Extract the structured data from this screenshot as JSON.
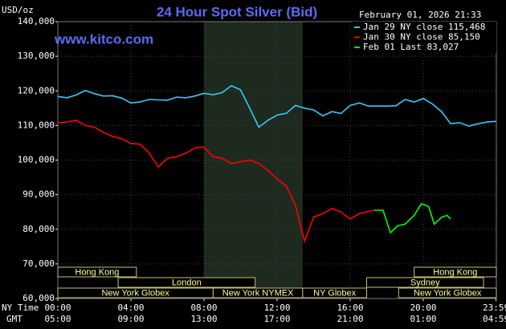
{
  "chart_data": {
    "type": "line",
    "title": "24 Hour Spot Silver (Bid)",
    "watermark": "www.kitco.com",
    "y_label": "USD/oz",
    "timestamp": "February 01, 2026 21:33",
    "x_row_labels": [
      "NY Time",
      "GMT"
    ],
    "xlim": [
      0,
      24
    ],
    "ylim": [
      60000,
      140000
    ],
    "yticks": [
      {
        "value": 60000,
        "label": "60,000"
      },
      {
        "value": 70000,
        "label": "70,000"
      },
      {
        "value": 80000,
        "label": "80,000"
      },
      {
        "value": 90000,
        "label": "90,000"
      },
      {
        "value": 100000,
        "label": "100,000"
      },
      {
        "value": 110000,
        "label": "110,000"
      },
      {
        "value": 120000,
        "label": "120,000"
      },
      {
        "value": 130000,
        "label": "130,000"
      },
      {
        "value": 140000,
        "label": "140,000"
      }
    ],
    "xticks": [
      {
        "value": 0,
        "label": "00:00"
      },
      {
        "value": 4,
        "label": "04:00"
      },
      {
        "value": 8,
        "label": "08:00"
      },
      {
        "value": 12,
        "label": "12:00"
      },
      {
        "value": 16,
        "label": "16:00"
      },
      {
        "value": 20,
        "label": "20:00"
      },
      {
        "value": 23.98,
        "label": "23:59"
      }
    ],
    "x2ticks": [
      {
        "value": 0,
        "label": "05:00"
      },
      {
        "value": 4,
        "label": "09:00"
      },
      {
        "value": 8,
        "label": "13:00"
      },
      {
        "value": 12,
        "label": "17:00"
      },
      {
        "value": 16,
        "label": "21:00"
      },
      {
        "value": 20,
        "label": "01:00"
      },
      {
        "value": 23.98,
        "label": "04:59"
      }
    ],
    "grid": true,
    "shaded": [
      8.0,
      13.4
    ],
    "session_rows": [
      [
        {
          "name": "Hong Kong",
          "start": 0,
          "end": 4.3
        },
        {
          "name": "Hong Kong",
          "start": 19.5,
          "end": 24
        }
      ],
      [
        {
          "name": "London",
          "start": 3.3,
          "end": 10.8
        },
        {
          "name": "Sydney",
          "start": 16.9,
          "end": 23.3
        }
      ],
      [
        {
          "name": "New York Globex",
          "start": 0,
          "end": 8.5
        },
        {
          "name": "New York NYMEX",
          "start": 8.5,
          "end": 13.4
        },
        {
          "name": "NY Globex",
          "start": 13.4,
          "end": 16.9
        },
        {
          "name": "New York Globex",
          "start": 18.65,
          "end": 24
        }
      ]
    ],
    "series": [
      {
        "name": "Jan 29 NY close 115,468",
        "color": "#33ccff",
        "x": [
          0,
          0.5,
          1,
          1.5,
          2,
          2.5,
          3,
          3.5,
          4,
          4.5,
          5,
          5.5,
          6,
          6.5,
          7,
          7.5,
          8,
          8.5,
          9,
          9.5,
          10,
          10.5,
          11,
          11.5,
          12,
          12.5,
          13,
          13.5,
          14,
          14.5,
          15,
          15.5,
          16,
          16.5,
          17,
          17.5,
          18,
          18.5,
          19,
          19.5,
          20,
          20.5,
          21,
          21.5,
          22,
          22.5,
          23,
          23.5,
          24
        ],
        "values": [
          118400,
          118000,
          118800,
          120100,
          119200,
          118500,
          118600,
          117900,
          116500,
          116800,
          117500,
          117400,
          117300,
          118200,
          118000,
          118500,
          119300,
          118900,
          119500,
          121500,
          120300,
          115000,
          109500,
          111500,
          113000,
          113500,
          115800,
          115000,
          114500,
          112800,
          114000,
          113500,
          115800,
          116500,
          115600,
          115600,
          115600,
          115700,
          117500,
          116800,
          117800,
          116200,
          114000,
          110500,
          110800,
          109800,
          110500,
          111000,
          111200
        ]
      },
      {
        "name": "Jan 30 NY close 85,150",
        "color": "#ff0000",
        "x": [
          0,
          0.5,
          1,
          1.5,
          2,
          2.5,
          3,
          3.5,
          4,
          4.5,
          5,
          5.5,
          6,
          6.5,
          7,
          7.5,
          8,
          8.5,
          9,
          9.5,
          10,
          10.5,
          11,
          11.5,
          12,
          12.5,
          13,
          13.5,
          14,
          14.5,
          15,
          15.5,
          16,
          16.5,
          17.3
        ],
        "values": [
          110800,
          111000,
          111500,
          110000,
          109500,
          108000,
          106800,
          106200,
          104800,
          104600,
          102000,
          98000,
          100500,
          101000,
          102000,
          103500,
          103800,
          101000,
          100500,
          99000,
          99500,
          100000,
          99000,
          97000,
          94500,
          92500,
          87000,
          76500,
          83500,
          84500,
          86000,
          85000,
          83000,
          84500,
          85500
        ]
      },
      {
        "name": "Feb 01 Last 83,027",
        "color": "#00ff00",
        "x": [
          17.3,
          17.8,
          18.2,
          18.6,
          19,
          19.5,
          19.9,
          20.3,
          20.6,
          21,
          21.3,
          21.5
        ],
        "values": [
          85500,
          85500,
          79000,
          81000,
          81500,
          84000,
          87400,
          86500,
          81500,
          83500,
          84000,
          83000
        ]
      }
    ]
  }
}
